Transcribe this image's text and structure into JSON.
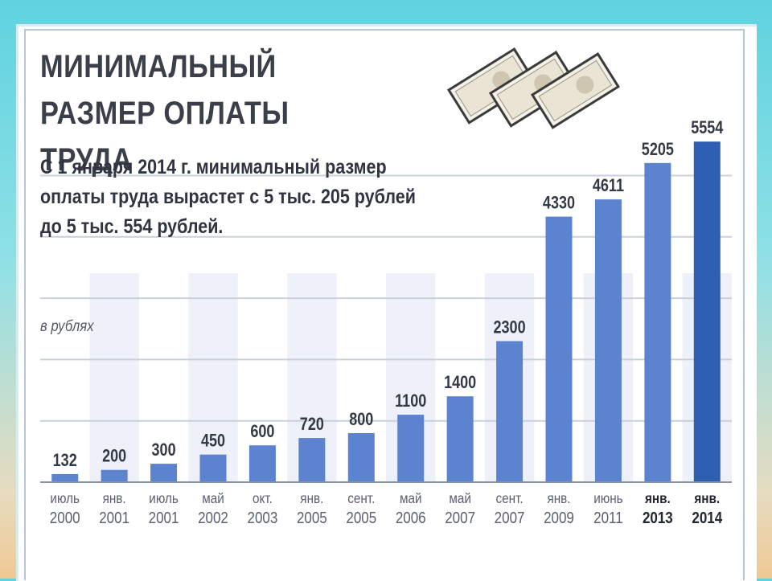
{
  "title": "МИНИМАЛЬНЫЙ РАЗМЕР ОПЛАТЫ ТРУДА",
  "subtitle": "С 1 января 2014 г. минимальный размер оплаты труда вырастет с 5 тыс. 205 рублей до 5 тыс. 554 рублей.",
  "units_label": "в рублях",
  "colors": {
    "bar": "#5b83cf",
    "bar_highlight": "#2e5fb0",
    "stripe": "#eef1f9",
    "grid": "#c9d0dc",
    "label": "#333a45"
  },
  "chart_data": {
    "type": "bar",
    "title": "МИНИМАЛЬНЫЙ РАЗМЕР ОПЛАТЫ ТРУДА",
    "ylabel": "в рублях",
    "xlabel": "",
    "ylim": [
      0,
      6000
    ],
    "grid": true,
    "categories": [
      [
        "июль",
        "2000"
      ],
      [
        "янв.",
        "2001"
      ],
      [
        "июль",
        "2001"
      ],
      [
        "май",
        "2002"
      ],
      [
        "окт.",
        "2003"
      ],
      [
        "янв.",
        "2005"
      ],
      [
        "сент.",
        "2005"
      ],
      [
        "май",
        "2006"
      ],
      [
        "май",
        "2007"
      ],
      [
        "сент.",
        "2007"
      ],
      [
        "янв.",
        "2009"
      ],
      [
        "июнь",
        "2011"
      ],
      [
        "янв.",
        "2013"
      ],
      [
        "янв.",
        "2014"
      ]
    ],
    "values": [
      132,
      200,
      300,
      450,
      600,
      720,
      800,
      1100,
      1400,
      2300,
      4330,
      4611,
      5205,
      5554
    ],
    "value_labels": [
      "132",
      "200",
      "300",
      "450",
      "600",
      "720",
      "800",
      "1100",
      "1400",
      "2300",
      "4330",
      "4611",
      "5205",
      "5554"
    ],
    "bold_categories": [
      12,
      13
    ],
    "highlight_index": 13
  }
}
